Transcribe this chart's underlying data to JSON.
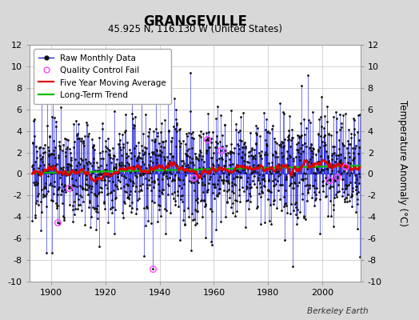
{
  "title": "GRANGEVILLE",
  "subtitle": "45.925 N, 116.130 W (United States)",
  "ylabel": "Temperature Anomaly (°C)",
  "watermark": "Berkeley Earth",
  "year_start": 1893,
  "year_end": 2013,
  "ylim": [
    -10,
    12
  ],
  "yticks": [
    -10,
    -8,
    -6,
    -4,
    -2,
    0,
    2,
    4,
    6,
    8,
    10,
    12
  ],
  "xticks": [
    1900,
    1920,
    1940,
    1960,
    1980,
    2000
  ],
  "figure_bg": "#d8d8d8",
  "plot_bg": "#ffffff",
  "raw_line_color": "#2222dd",
  "raw_dot_color": "#111111",
  "qc_fail_color": "#ff44ff",
  "moving_avg_color": "#dd0000",
  "trend_color": "#00bb00",
  "grid_color": "#cccccc",
  "seed": 17
}
